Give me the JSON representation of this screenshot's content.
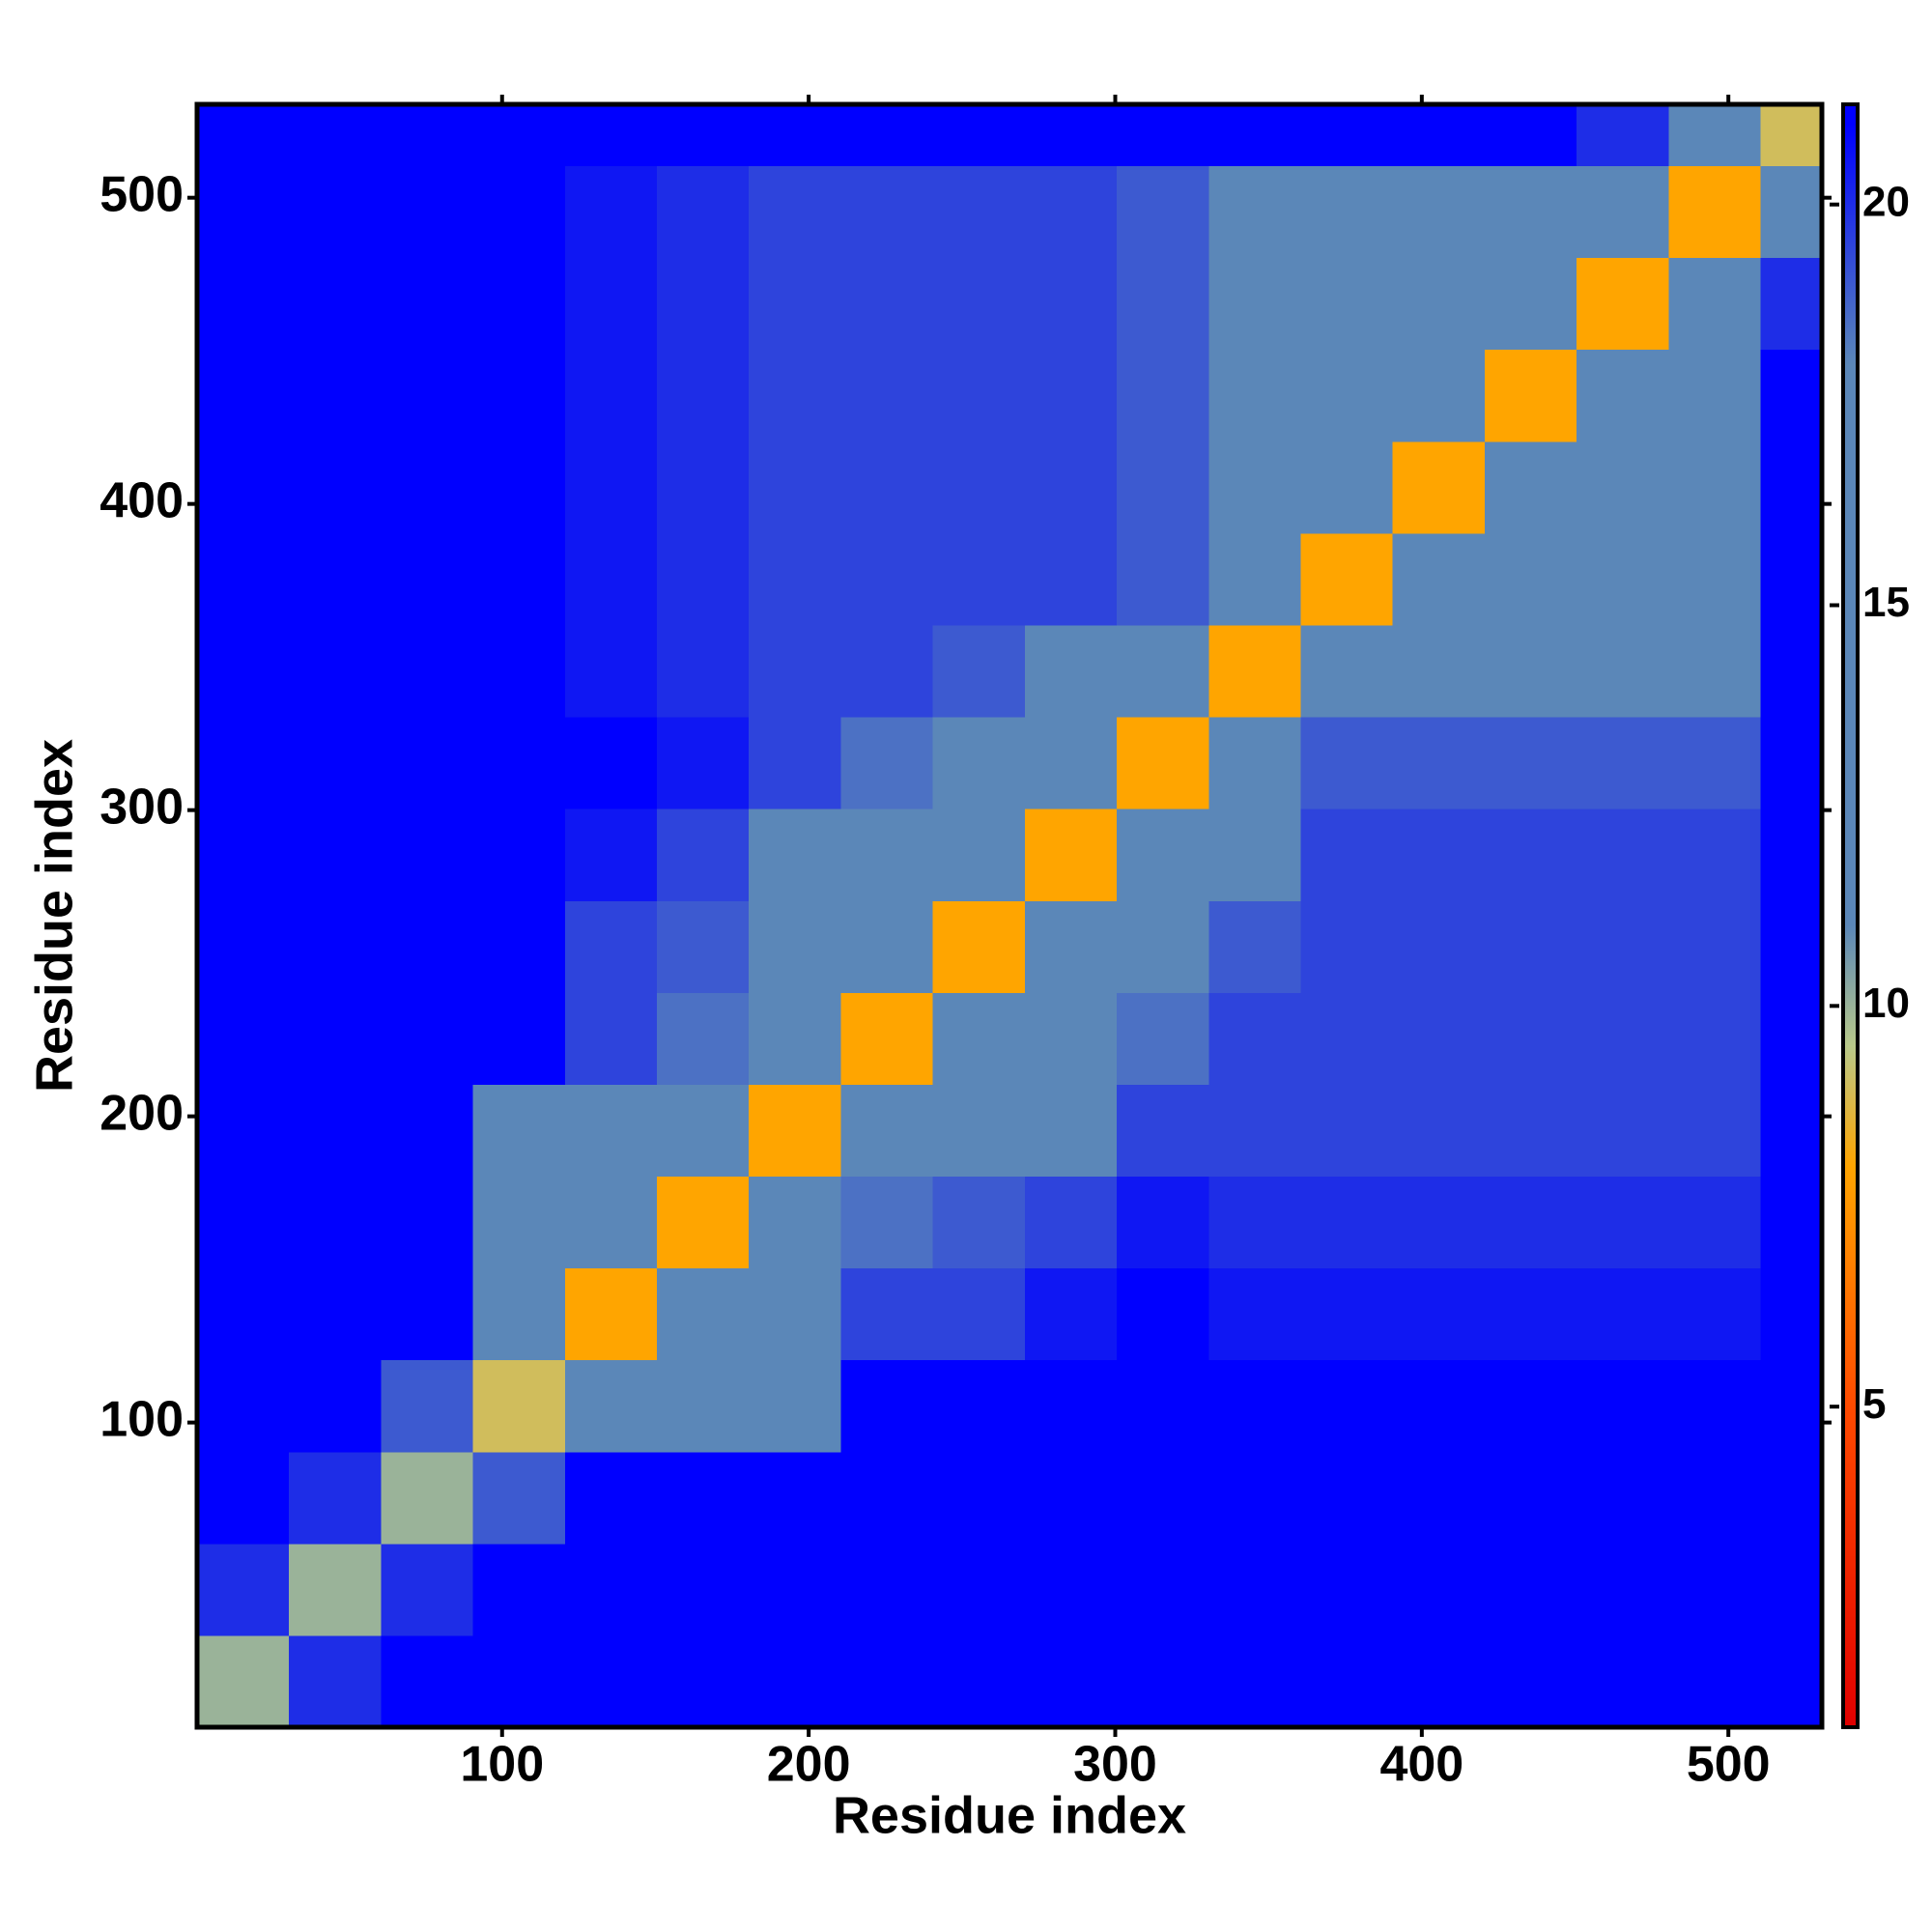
{
  "chart_data": {
    "type": "heatmap",
    "xlabel": "Residue index",
    "ylabel": "Residue index",
    "xlim": [
      0.5,
      530.5
    ],
    "ylim": [
      0.5,
      530.5
    ],
    "xticks": [
      100,
      200,
      300,
      400,
      500
    ],
    "yticks": [
      100,
      200,
      300,
      400,
      500
    ],
    "x_bins": [
      0.5,
      30.5,
      60.5,
      90.5,
      120.5,
      150.5,
      180.5,
      210.5,
      240.5,
      270.5,
      300.5,
      330.5,
      360.5,
      390.5,
      420.5,
      450.5,
      480.5,
      510.5,
      530.5
    ],
    "y_bins": [
      0.5,
      30.5,
      60.5,
      90.5,
      120.5,
      150.5,
      180.5,
      210.5,
      240.5,
      270.5,
      300.5,
      330.5,
      360.5,
      390.5,
      420.5,
      450.5,
      480.5,
      510.5,
      530.5
    ],
    "values": [
      [
        10,
        20,
        21,
        21,
        21,
        21,
        21,
        21,
        21,
        21,
        21,
        21,
        21,
        21,
        21,
        21,
        21,
        21
      ],
      [
        20,
        10,
        20,
        21,
        21,
        21,
        21,
        21,
        21,
        21,
        21,
        21,
        21,
        21,
        21,
        21,
        21,
        21
      ],
      [
        21,
        20,
        10,
        19,
        21,
        21,
        21,
        21,
        21,
        21,
        21,
        21,
        21,
        21,
        21,
        21,
        21,
        21
      ],
      [
        21,
        21,
        19,
        9,
        14,
        16,
        18,
        21,
        21,
        21,
        21,
        21,
        21,
        21,
        21,
        21,
        21,
        21
      ],
      [
        21,
        21,
        21,
        14,
        8,
        13,
        15,
        19.5,
        19.5,
        20.5,
        21,
        20.5,
        20.5,
        20.5,
        20.5,
        20.5,
        20.5,
        21
      ],
      [
        21,
        21,
        21,
        16,
        13,
        8,
        13,
        18.5,
        19,
        19.5,
        20.5,
        20,
        20,
        20,
        20,
        20,
        20,
        21
      ],
      [
        21,
        21,
        21,
        18,
        15,
        13,
        8,
        13,
        15,
        18,
        19.5,
        19.5,
        19.5,
        19.5,
        19.5,
        19.5,
        19.5,
        21
      ],
      [
        21,
        21,
        21,
        21,
        19.5,
        18.5,
        13,
        8,
        13,
        16,
        18.5,
        19.5,
        19.5,
        19.5,
        19.5,
        19.5,
        19.5,
        21
      ],
      [
        21,
        21,
        21,
        21,
        19.5,
        19,
        15,
        13,
        8,
        13,
        15,
        19,
        19.5,
        19.5,
        19.5,
        19.5,
        19.5,
        21
      ],
      [
        21,
        21,
        21,
        21,
        20.5,
        19.5,
        18,
        16,
        13,
        8,
        13,
        17,
        19.5,
        19.5,
        19.5,
        19.5,
        19.5,
        21
      ],
      [
        21,
        21,
        21,
        21,
        21,
        20.5,
        19.5,
        18.5,
        15,
        13,
        8,
        15,
        19,
        19,
        19,
        19,
        19,
        21
      ],
      [
        21,
        21,
        21,
        21,
        20.5,
        20,
        19.5,
        19.5,
        19,
        17,
        15,
        8,
        14,
        15,
        15,
        15,
        15,
        21
      ],
      [
        21,
        21,
        21,
        21,
        20.5,
        20,
        19.5,
        19.5,
        19.5,
        19.5,
        19,
        14,
        8,
        14,
        15,
        15,
        15,
        21
      ],
      [
        21,
        21,
        21,
        21,
        20.5,
        20,
        19.5,
        19.5,
        19.5,
        19.5,
        19,
        15,
        14,
        8,
        14,
        15,
        15,
        21
      ],
      [
        21,
        21,
        21,
        21,
        20.5,
        20,
        19.5,
        19.5,
        19.5,
        19.5,
        19,
        15,
        15,
        14,
        8,
        14,
        15,
        21
      ],
      [
        21,
        21,
        21,
        21,
        20.5,
        20,
        19.5,
        19.5,
        19.5,
        19.5,
        19,
        15,
        15,
        15,
        14,
        8,
        14,
        20
      ],
      [
        21,
        21,
        21,
        21,
        20.5,
        20,
        19.5,
        19.5,
        19.5,
        19.5,
        19,
        15,
        15,
        15,
        15,
        14,
        8,
        16
      ],
      [
        21,
        21,
        21,
        21,
        21,
        21,
        21,
        21,
        21,
        21,
        21,
        21,
        21,
        21,
        21,
        20,
        16,
        9
      ]
    ],
    "colorbar_lim": [
      1,
      21.25
    ],
    "colorbar_ticks": [
      5,
      10,
      15,
      20
    ],
    "colorscale": [
      [
        1,
        "#e00000"
      ],
      [
        5,
        "#ff4a00"
      ],
      [
        8,
        "#ffa500"
      ],
      [
        9.5,
        "#b9c98a"
      ],
      [
        11,
        "#5b87b8"
      ],
      [
        18,
        "#5b87b8"
      ],
      [
        21,
        "#0000ff"
      ],
      [
        21.25,
        "#0000ff"
      ]
    ]
  }
}
